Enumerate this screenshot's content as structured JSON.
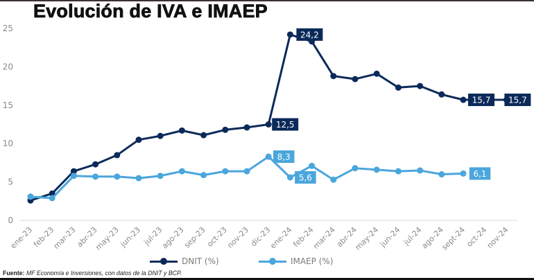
{
  "title": "Evolución de IVA e IMAEP",
  "footer": {
    "label": "Fuente:",
    "text": "MF Economía e Inversiones, con datos de la DNIT y BCP."
  },
  "colors": {
    "dnit": "#0b2a5a",
    "imaep": "#4aa6dc",
    "grid": "#d9d9d9",
    "tick_text": "#8a8a8a"
  },
  "chart_data": {
    "type": "line",
    "title": "Evolución de IVA e IMAEP",
    "xlabel": "",
    "ylabel": "",
    "ylim": [
      0,
      25
    ],
    "yticks": [
      0,
      5,
      10,
      15,
      20,
      25
    ],
    "grid": false,
    "legend": "bottom",
    "categories": [
      "ene-23",
      "feb-23",
      "mar-23",
      "abr-23",
      "may-23",
      "jun-23",
      "jul-23",
      "ago-23",
      "sep-23",
      "oct-23",
      "nov-23",
      "dic-23",
      "ene-24",
      "feb-24",
      "mar-24",
      "abr-24",
      "may-24",
      "jun-24",
      "jul-24",
      "ago-24",
      "sept-24",
      "oct-24",
      "nov-24"
    ],
    "series": [
      {
        "name": "DNIT (%)",
        "color": "#0b2a5a",
        "values": [
          2.6,
          3.5,
          6.4,
          7.3,
          8.5,
          10.5,
          11.0,
          11.7,
          11.1,
          11.8,
          12.1,
          12.5,
          24.2,
          23.3,
          18.8,
          18.4,
          19.1,
          17.3,
          17.5,
          16.4,
          15.7,
          15.7,
          15.7
        ],
        "data_labels": [
          {
            "index": 11,
            "text": "12,5"
          },
          {
            "index": 12,
            "text": "24,2"
          },
          {
            "index": 20,
            "text": "15,7"
          },
          {
            "index": 22,
            "text": "15,7"
          }
        ]
      },
      {
        "name": "IMAEP (%)",
        "color": "#4aa6dc",
        "values": [
          3.1,
          2.9,
          5.8,
          5.7,
          5.7,
          5.5,
          5.8,
          6.4,
          5.9,
          6.4,
          6.4,
          8.3,
          5.6,
          7.1,
          5.3,
          6.8,
          6.6,
          6.4,
          6.5,
          6.0,
          6.1,
          null,
          null
        ],
        "data_labels": [
          {
            "index": 11,
            "text": "8,3"
          },
          {
            "index": 12,
            "text": "5,6"
          },
          {
            "index": 20,
            "text": "6,1"
          }
        ]
      }
    ]
  }
}
